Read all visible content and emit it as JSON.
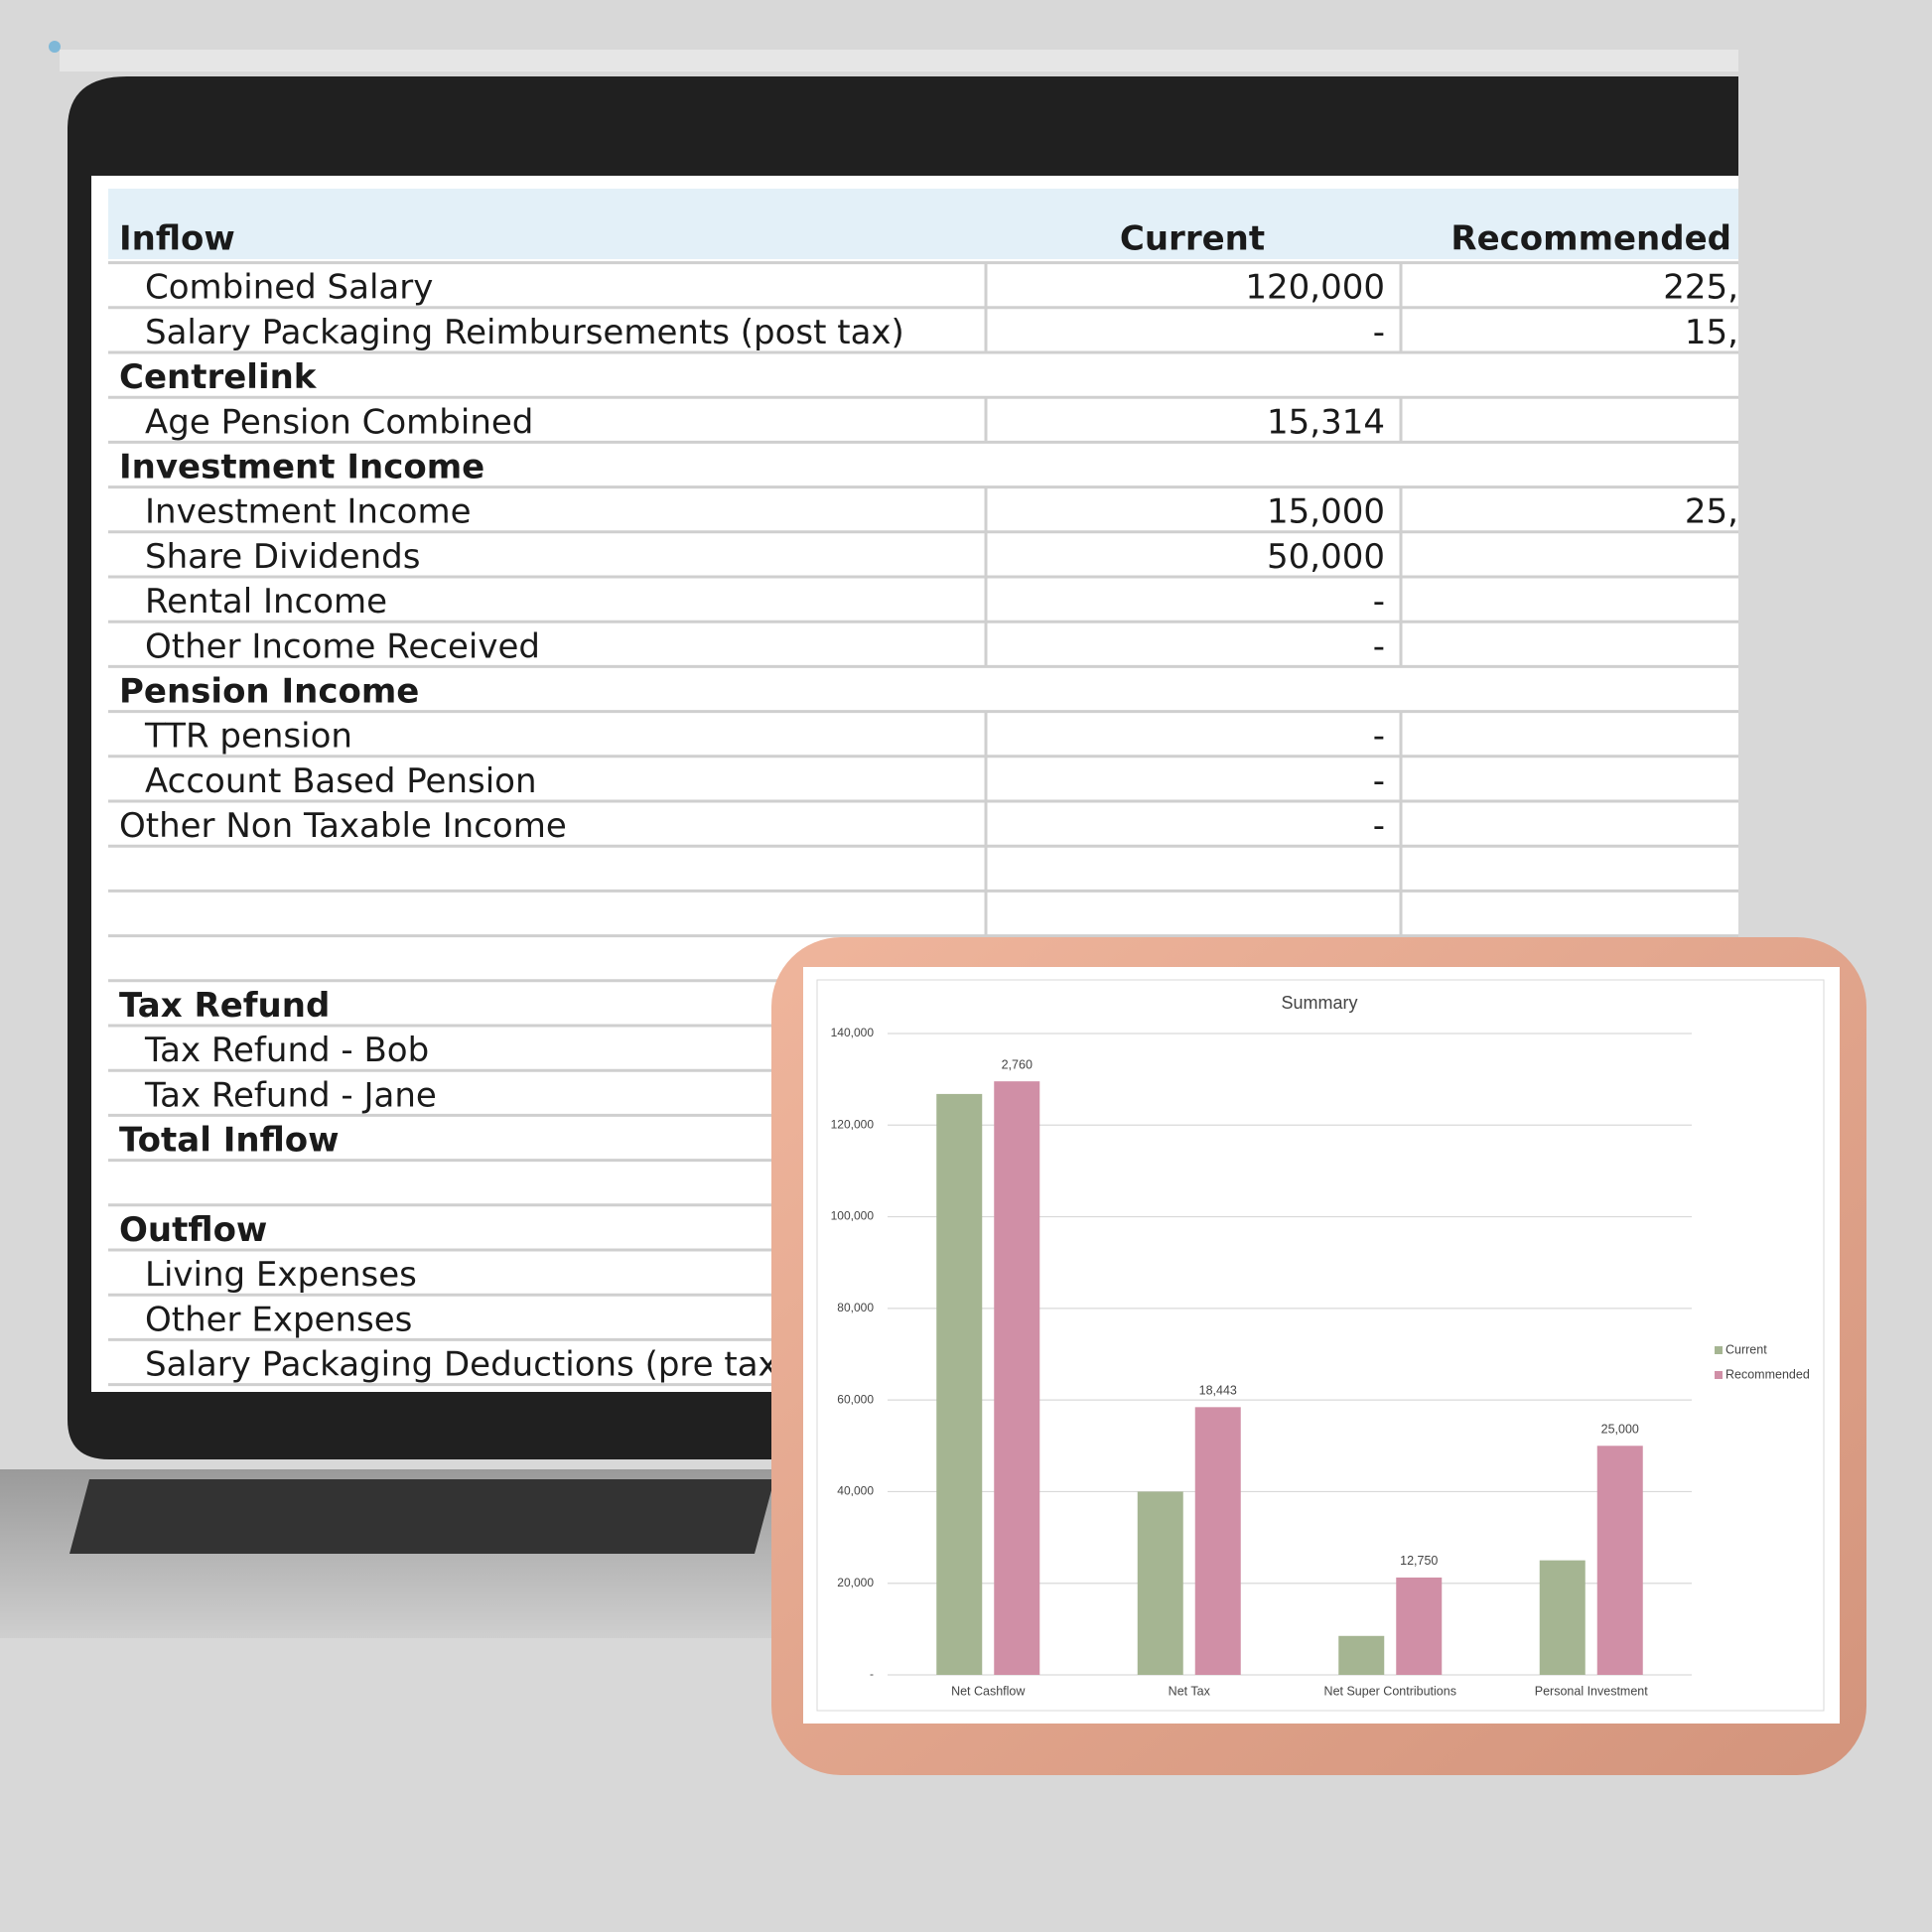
{
  "table": {
    "header": {
      "label": "Inflow",
      "current": "Current",
      "recommended": "Recommended"
    },
    "rows": [
      {
        "label": "Combined Salary",
        "style": "item",
        "current": "120,000",
        "recommended": "225,"
      },
      {
        "label": "Salary Packaging Reimbursements (post tax)",
        "style": "item",
        "current": "-",
        "recommended": "15,"
      },
      {
        "label": "Centrelink",
        "style": "section"
      },
      {
        "label": "Age Pension Combined",
        "style": "item",
        "current": "15,314"
      },
      {
        "label": "Investment Income",
        "style": "section"
      },
      {
        "label": "Investment Income",
        "style": "item",
        "current": "15,000",
        "recommended": "25,"
      },
      {
        "label": "Share Dividends",
        "style": "item",
        "current": "50,000"
      },
      {
        "label": "Rental Income",
        "style": "item",
        "current": "-"
      },
      {
        "label": "Other Income Received",
        "style": "item",
        "current": "-"
      },
      {
        "label": "Pension Income",
        "style": "section"
      },
      {
        "label": "TTR pension",
        "style": "item",
        "current": "-"
      },
      {
        "label": "Account Based Pension",
        "style": "item",
        "current": "-"
      },
      {
        "label": "Other Non Taxable Income",
        "style": "plain",
        "current": "-"
      },
      {
        "label": "Tax Refund",
        "style": "section"
      },
      {
        "label": "Tax Refund - Bob",
        "style": "item"
      },
      {
        "label": "Tax Refund - Jane",
        "style": "item"
      },
      {
        "label": "Total Inflow",
        "style": "section"
      },
      {
        "label": "Outflow",
        "style": "section"
      },
      {
        "label": "Living Expenses",
        "style": "item"
      },
      {
        "label": "Other Expenses",
        "style": "item"
      },
      {
        "label": "Salary Packaging Deductions (pre tax)",
        "style": "item"
      }
    ]
  },
  "chart_data": {
    "type": "bar",
    "title": "Summary",
    "categories": [
      "Net Cashflow",
      "Net Tax",
      "Net Super Contributions",
      "Personal Investment"
    ],
    "series": [
      {
        "name": "Current",
        "color": "#a5b592",
        "values": [
          126800,
          40000,
          8500,
          25000
        ]
      },
      {
        "name": "Recommended",
        "color": "#d08fa6",
        "values": [
          129560,
          58443,
          21250,
          50000
        ]
      }
    ],
    "annotations": [
      "2,760",
      "18,443",
      "12,750",
      "25,000"
    ],
    "ylim": [
      0,
      140000
    ],
    "yticks": [
      {
        "value": 0,
        "label": "-"
      },
      {
        "value": 20000,
        "label": "20,000"
      },
      {
        "value": 40000,
        "label": "40,000"
      },
      {
        "value": 60000,
        "label": "60,000"
      },
      {
        "value": 80000,
        "label": "80,000"
      },
      {
        "value": 100000,
        "label": "100,000"
      },
      {
        "value": 120000,
        "label": "120,000"
      },
      {
        "value": 140000,
        "label": "140,000"
      }
    ],
    "grid": true,
    "legend": "right"
  }
}
